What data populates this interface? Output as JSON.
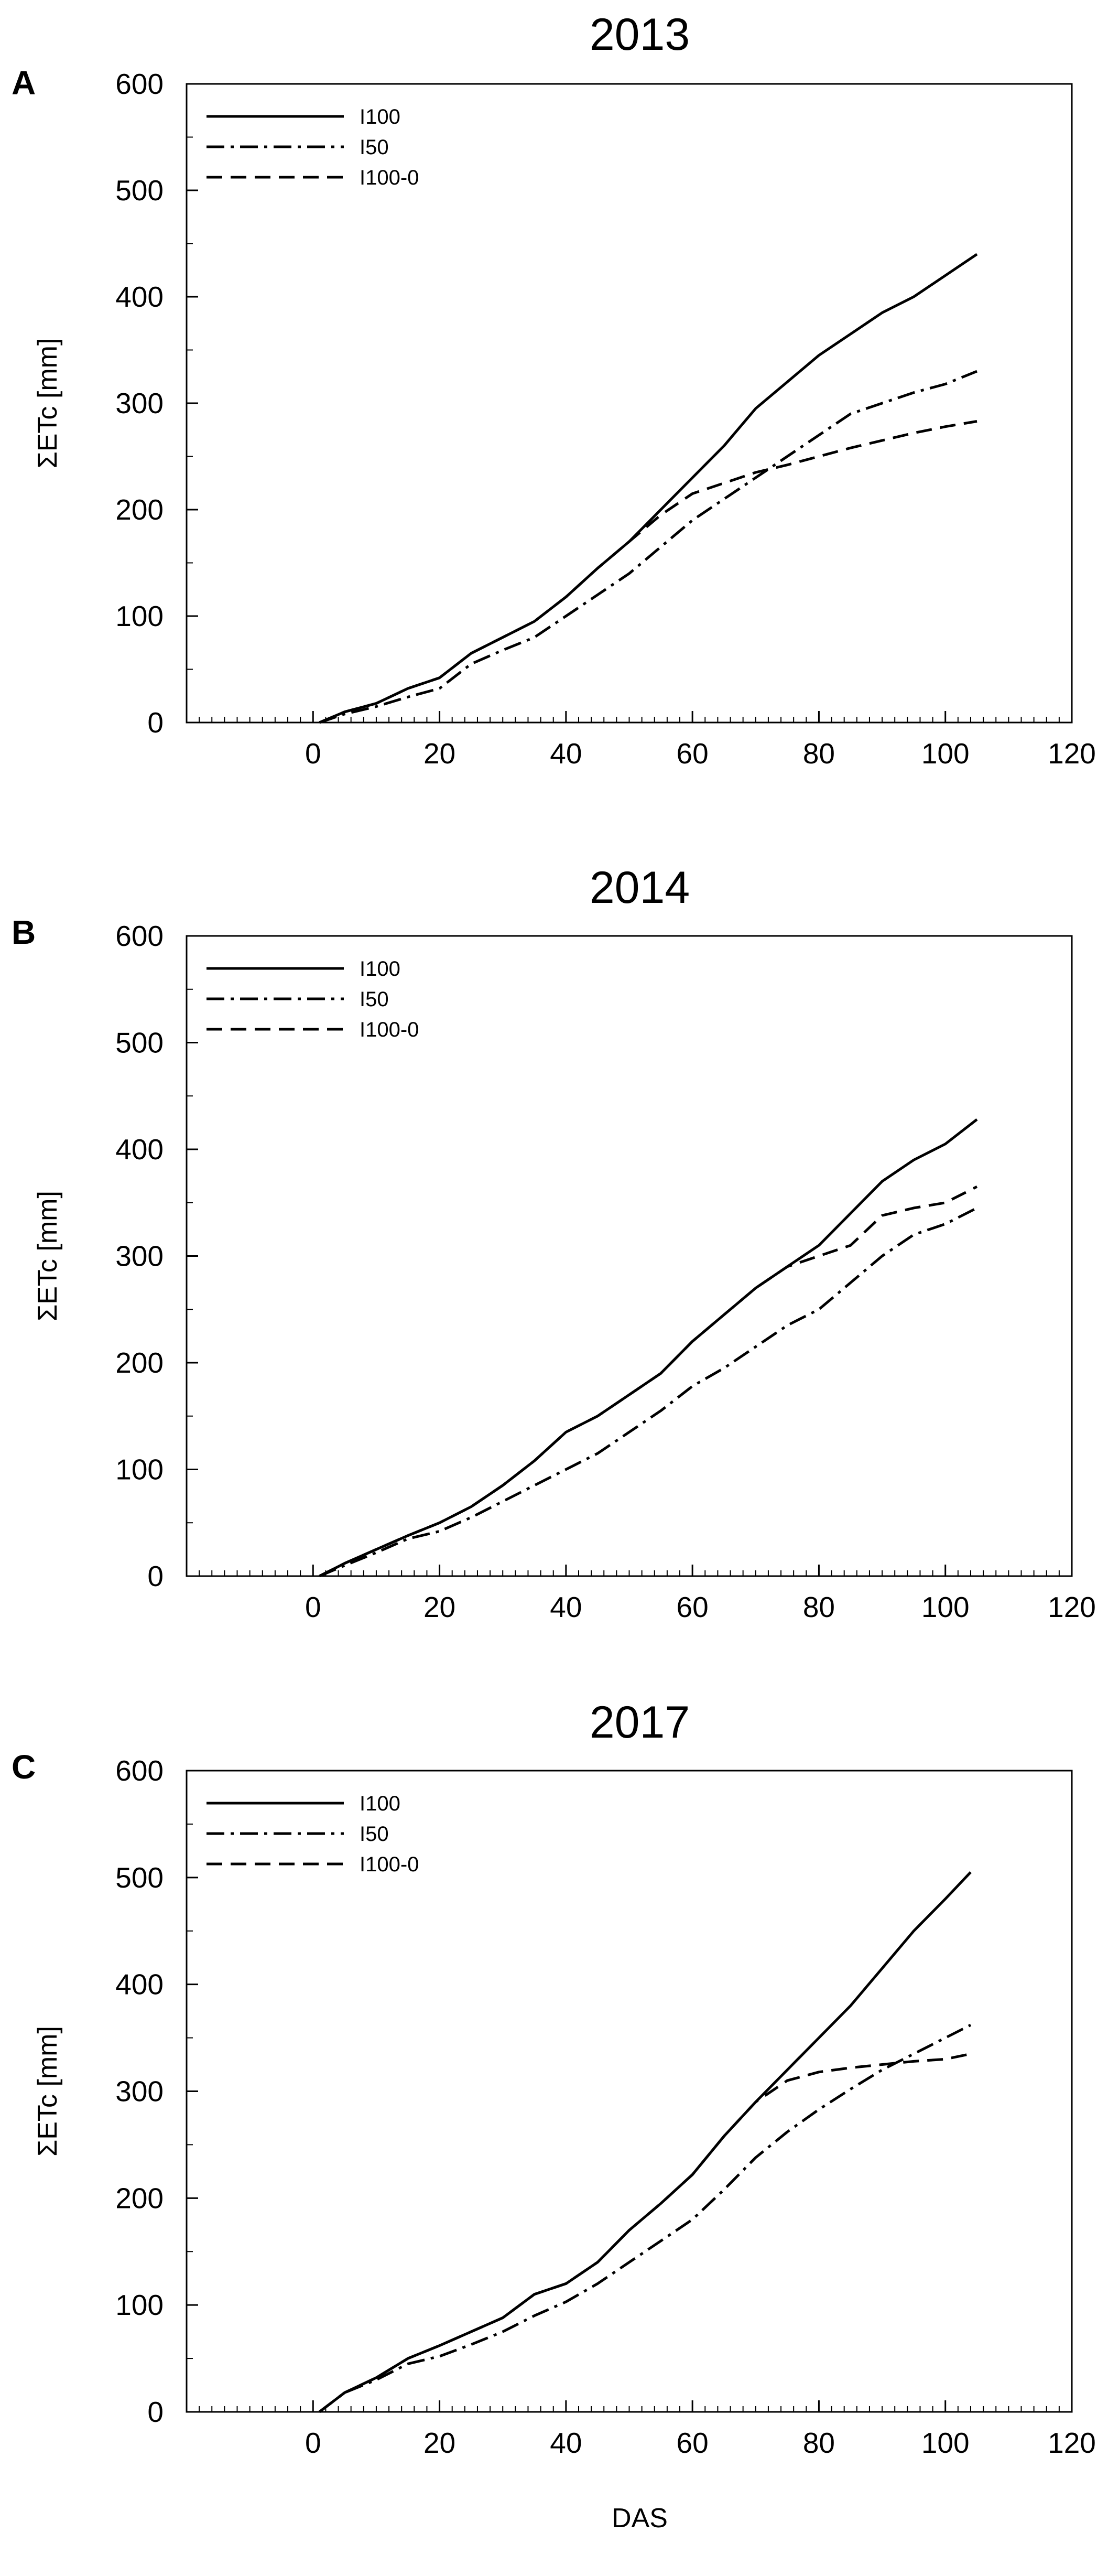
{
  "chart_data": [
    {
      "type": "line",
      "panel": "A",
      "title": "2013",
      "xlabel": "",
      "ylabel": "ΣETc [mm]",
      "xlim": [
        -20,
        120
      ],
      "ylim": [
        0,
        600
      ],
      "xticks": [
        0,
        20,
        40,
        60,
        80,
        100,
        120
      ],
      "yticks": [
        0,
        100,
        200,
        300,
        400,
        500,
        600
      ],
      "grid": false,
      "legend_position": "top-left",
      "series": [
        {
          "name": "I100",
          "style": "solid",
          "x": [
            1,
            5,
            10,
            15,
            20,
            25,
            30,
            35,
            40,
            45,
            50,
            55,
            60,
            65,
            70,
            75,
            80,
            85,
            90,
            95,
            100,
            105
          ],
          "y": [
            0,
            10,
            18,
            32,
            42,
            65,
            80,
            95,
            118,
            145,
            170,
            200,
            230,
            260,
            295,
            320,
            345,
            365,
            385,
            400,
            420,
            440
          ]
        },
        {
          "name": "I50",
          "style": "dashdot",
          "x": [
            1,
            5,
            10,
            15,
            20,
            25,
            30,
            35,
            40,
            45,
            50,
            55,
            60,
            65,
            70,
            75,
            80,
            85,
            90,
            95,
            100,
            105
          ],
          "y": [
            0,
            8,
            15,
            24,
            32,
            55,
            68,
            80,
            100,
            120,
            140,
            165,
            190,
            210,
            230,
            250,
            270,
            290,
            300,
            310,
            318,
            330
          ]
        },
        {
          "name": "I100-0",
          "style": "dashed",
          "x": [
            1,
            5,
            10,
            15,
            20,
            25,
            30,
            35,
            40,
            45,
            50,
            55,
            60,
            65,
            70,
            75,
            80,
            85,
            90,
            95,
            100,
            105
          ],
          "y": [
            0,
            10,
            18,
            32,
            42,
            65,
            80,
            95,
            118,
            145,
            170,
            195,
            215,
            225,
            235,
            242,
            250,
            258,
            265,
            272,
            278,
            283
          ]
        }
      ]
    },
    {
      "type": "line",
      "panel": "B",
      "title": "2014",
      "xlabel": "",
      "ylabel": "ΣETc [mm]",
      "xlim": [
        -20,
        120
      ],
      "ylim": [
        0,
        600
      ],
      "xticks": [
        0,
        20,
        40,
        60,
        80,
        100,
        120
      ],
      "yticks": [
        0,
        100,
        200,
        300,
        400,
        500,
        600
      ],
      "grid": false,
      "legend_position": "top-left",
      "series": [
        {
          "name": "I100",
          "style": "solid",
          "x": [
            1,
            5,
            10,
            15,
            20,
            25,
            30,
            35,
            40,
            45,
            50,
            55,
            60,
            65,
            70,
            75,
            80,
            85,
            90,
            95,
            100,
            105
          ],
          "y": [
            0,
            12,
            25,
            38,
            50,
            65,
            85,
            108,
            135,
            150,
            170,
            190,
            220,
            245,
            270,
            290,
            310,
            340,
            370,
            390,
            405,
            428
          ]
        },
        {
          "name": "I50",
          "style": "dashdot",
          "x": [
            1,
            5,
            10,
            15,
            20,
            25,
            30,
            35,
            40,
            45,
            50,
            55,
            60,
            65,
            70,
            75,
            80,
            85,
            90,
            95,
            100,
            105
          ],
          "y": [
            0,
            10,
            22,
            35,
            42,
            55,
            70,
            85,
            100,
            115,
            135,
            155,
            178,
            195,
            215,
            235,
            250,
            275,
            300,
            320,
            330,
            345
          ]
        },
        {
          "name": "I100-0",
          "style": "dashed",
          "x": [
            1,
            5,
            10,
            15,
            20,
            25,
            30,
            35,
            40,
            45,
            50,
            55,
            60,
            65,
            70,
            75,
            80,
            85,
            90,
            95,
            100,
            105
          ],
          "y": [
            0,
            12,
            25,
            38,
            50,
            65,
            85,
            108,
            135,
            150,
            170,
            190,
            220,
            245,
            270,
            290,
            300,
            310,
            338,
            345,
            350,
            365
          ]
        }
      ]
    },
    {
      "type": "line",
      "panel": "C",
      "title": "2017",
      "xlabel": "DAS",
      "ylabel": "ΣETc [mm]",
      "xlim": [
        -20,
        120
      ],
      "ylim": [
        0,
        600
      ],
      "xticks": [
        0,
        20,
        40,
        60,
        80,
        100,
        120
      ],
      "yticks": [
        0,
        100,
        200,
        300,
        400,
        500,
        600
      ],
      "grid": false,
      "legend_position": "top-left",
      "series": [
        {
          "name": "I100",
          "style": "solid",
          "x": [
            1,
            5,
            10,
            15,
            20,
            25,
            30,
            35,
            40,
            45,
            50,
            55,
            60,
            65,
            70,
            75,
            80,
            85,
            90,
            95,
            100,
            104
          ],
          "y": [
            0,
            18,
            32,
            50,
            62,
            75,
            88,
            110,
            120,
            140,
            170,
            195,
            222,
            258,
            290,
            320,
            350,
            380,
            415,
            450,
            480,
            505
          ]
        },
        {
          "name": "I50",
          "style": "dashdot",
          "x": [
            1,
            5,
            10,
            15,
            20,
            25,
            30,
            35,
            40,
            45,
            50,
            55,
            60,
            65,
            70,
            75,
            80,
            85,
            90,
            95,
            100,
            104
          ],
          "y": [
            0,
            18,
            30,
            45,
            52,
            63,
            75,
            90,
            103,
            120,
            140,
            160,
            180,
            208,
            238,
            262,
            283,
            302,
            320,
            335,
            350,
            362
          ]
        },
        {
          "name": "I100-0",
          "style": "dashed",
          "x": [
            1,
            5,
            10,
            15,
            20,
            25,
            30,
            35,
            40,
            45,
            50,
            55,
            60,
            65,
            70,
            75,
            80,
            85,
            90,
            95,
            100,
            104
          ],
          "y": [
            0,
            18,
            32,
            50,
            62,
            75,
            88,
            110,
            120,
            140,
            170,
            195,
            222,
            258,
            290,
            310,
            318,
            322,
            325,
            328,
            330,
            335
          ]
        }
      ]
    }
  ]
}
